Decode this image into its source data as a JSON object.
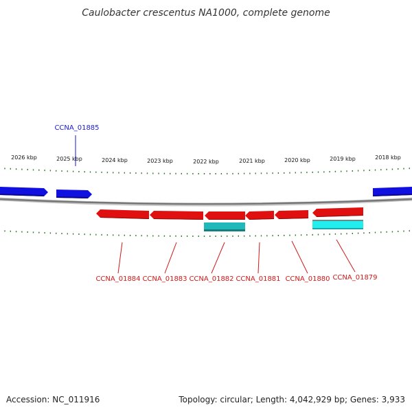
{
  "title": "Caulobacter crescentus NA1000, complete genome",
  "accession": "Accession: NC_011916",
  "summary": "Topology: circular; Length: 4,042,929 bp; Genes: 3,933",
  "colors": {
    "forward_gene": "#1010e0",
    "reverse_gene": "#e01010",
    "reverse_feature": "#20c8c8",
    "forward_label": "#1a1ad0",
    "reverse_label": "#d01818",
    "tick": "#2a7a2a",
    "backbone": "#888888"
  },
  "scale_labels": [
    "2026 kbp",
    "2025 kbp",
    "2024 kbp",
    "2023 kbp",
    "2022 kbp",
    "2021 kbp",
    "2020 kbp",
    "2019 kbp",
    "2018 kbp"
  ],
  "genes_forward": [
    "CCNA_01885"
  ],
  "genes_reverse": [
    "CCNA_01884",
    "CCNA_01883",
    "CCNA_01882",
    "CCNA_01881",
    "CCNA_01880",
    "CCNA_01879"
  ]
}
